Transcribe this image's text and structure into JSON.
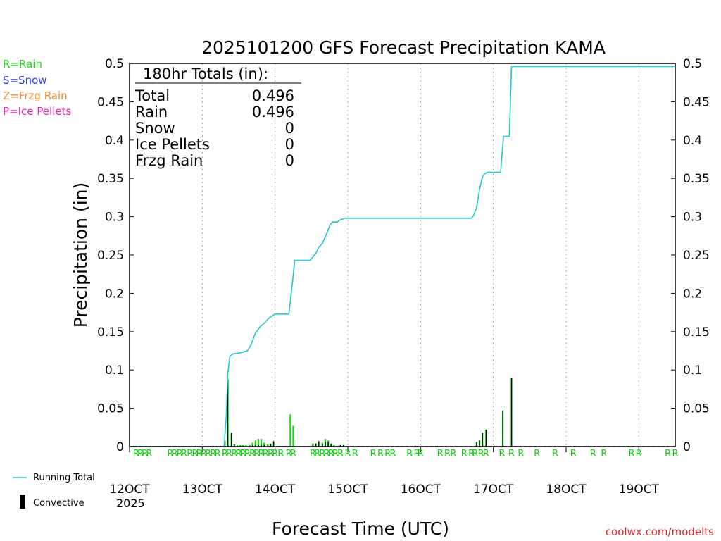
{
  "chart_data": {
    "type": "bar",
    "title": "2025101200 GFS Forecast Precipitation KAMA",
    "xlabel": "Forecast Time (UTC)",
    "ylabel": "Precipitation (in)",
    "ylim": [
      0,
      0.5
    ],
    "xlim_days": [
      12,
      19.5
    ],
    "y_ticks": [
      0,
      0.05,
      0.1,
      0.15,
      0.2,
      0.25,
      0.3,
      0.35,
      0.4,
      0.45,
      0.5
    ],
    "y_tick_labels": [
      "0",
      "0.05",
      "0.1",
      "0.15",
      "0.2",
      "0.25",
      "0.3",
      "0.35",
      "0.4",
      "0.45",
      "0.5"
    ],
    "x_ticks": [
      {
        "day": 12,
        "label": "12OCT"
      },
      {
        "day": 13,
        "label": "13OCT"
      },
      {
        "day": 14,
        "label": "14OCT"
      },
      {
        "day": 15,
        "label": "15OCT"
      },
      {
        "day": 16,
        "label": "16OCT"
      },
      {
        "day": 17,
        "label": "17OCT"
      },
      {
        "day": 18,
        "label": "18OCT"
      },
      {
        "day": 19,
        "label": "19OCT"
      }
    ],
    "year_label": "2025",
    "grid": "vertical-dotted",
    "legend": {
      "types": [
        {
          "label": "R=Rain",
          "color": "#22dd22"
        },
        {
          "label": "S=Snow",
          "color": "#3344ee"
        },
        {
          "label": "Z=Frzg Rain",
          "color": "#f08a2a"
        },
        {
          "label": "P=Ice Pellets",
          "color": "#ee22aa"
        }
      ],
      "running_total": "Running Total",
      "convective": "Convective"
    },
    "totals_box": {
      "heading": "180hr Totals (in):",
      "rows": [
        {
          "label": "Total",
          "value": "0.496"
        },
        {
          "label": "Rain",
          "value": "0.496"
        },
        {
          "label": "Snow",
          "value": "0"
        },
        {
          "label": "Ice Pellets",
          "value": "0"
        },
        {
          "label": "Frzg Rain",
          "value": "0"
        }
      ]
    },
    "precip_series": {
      "name": "Precipitation",
      "bar_width_days": 0.022,
      "points": [
        {
          "day": 13.31,
          "rain": 0.008,
          "conv": 0.008
        },
        {
          "day": 13.35,
          "rain": 0.088,
          "conv": 0.088
        },
        {
          "day": 13.4,
          "rain": 0.018,
          "conv": 0.018
        },
        {
          "day": 13.44,
          "rain": 0.003,
          "conv": 0.003
        },
        {
          "day": 13.48,
          "rain": 0.002,
          "conv": 0.001
        },
        {
          "day": 13.52,
          "rain": 0.002,
          "conv": 0.001
        },
        {
          "day": 13.56,
          "rain": 0.002,
          "conv": 0.001
        },
        {
          "day": 13.6,
          "rain": 0.002,
          "conv": 0.001
        },
        {
          "day": 13.65,
          "rain": 0.002,
          "conv": 0.001
        },
        {
          "day": 13.69,
          "rain": 0.005,
          "conv": 0.002
        },
        {
          "day": 13.73,
          "rain": 0.008,
          "conv": 0.002
        },
        {
          "day": 13.77,
          "rain": 0.01,
          "conv": 0.002
        },
        {
          "day": 13.81,
          "rain": 0.01,
          "conv": 0.002
        },
        {
          "day": 13.85,
          "rain": 0.005,
          "conv": 0.002
        },
        {
          "day": 13.9,
          "rain": 0.003,
          "conv": 0.002
        },
        {
          "day": 13.94,
          "rain": 0.004,
          "conv": 0.003
        },
        {
          "day": 13.98,
          "rain": 0.007,
          "conv": 0.007
        },
        {
          "day": 14.02,
          "rain": 0.001,
          "conv": 0.0
        },
        {
          "day": 14.06,
          "rain": 0.001,
          "conv": 0.0
        },
        {
          "day": 14.1,
          "rain": 0.001,
          "conv": 0.0
        },
        {
          "day": 14.15,
          "rain": 0.001,
          "conv": 0.0
        },
        {
          "day": 14.21,
          "rain": 0.042,
          "conv": 0.0
        },
        {
          "day": 14.25,
          "rain": 0.027,
          "conv": 0.0
        },
        {
          "day": 14.52,
          "rain": 0.004,
          "conv": 0.004
        },
        {
          "day": 14.56,
          "rain": 0.004,
          "conv": 0.004
        },
        {
          "day": 14.6,
          "rain": 0.007,
          "conv": 0.007
        },
        {
          "day": 14.65,
          "rain": 0.005,
          "conv": 0.003
        },
        {
          "day": 14.69,
          "rain": 0.01,
          "conv": 0.006
        },
        {
          "day": 14.73,
          "rain": 0.008,
          "conv": 0.006
        },
        {
          "day": 14.77,
          "rain": 0.004,
          "conv": 0.003
        },
        {
          "day": 14.81,
          "rain": 0.002,
          "conv": 0.001
        },
        {
          "day": 14.85,
          "rain": 0.001,
          "conv": 0.001
        },
        {
          "day": 14.9,
          "rain": 0.002,
          "conv": 0.002
        },
        {
          "day": 14.94,
          "rain": 0.002,
          "conv": 0.002
        },
        {
          "day": 16.77,
          "rain": 0.006,
          "conv": 0.006
        },
        {
          "day": 16.81,
          "rain": 0.008,
          "conv": 0.008
        },
        {
          "day": 16.85,
          "rain": 0.018,
          "conv": 0.018
        },
        {
          "day": 16.9,
          "rain": 0.022,
          "conv": 0.022
        },
        {
          "day": 17.13,
          "rain": 0.047,
          "conv": 0.047
        },
        {
          "day": 17.25,
          "rain": 0.09,
          "conv": 0.09
        }
      ]
    },
    "running_total_series": {
      "name": "Running Total",
      "x": [
        12.0,
        13.3,
        13.33,
        13.35,
        13.38,
        13.42,
        13.5,
        13.62,
        13.67,
        13.73,
        13.79,
        13.85,
        13.92,
        14.0,
        14.19,
        14.24,
        14.27,
        14.48,
        14.56,
        14.6,
        14.65,
        14.71,
        14.76,
        14.79,
        14.85,
        14.9,
        14.96,
        15.0,
        16.7,
        16.73,
        16.77,
        16.81,
        16.85,
        16.88,
        16.92,
        17.0,
        17.1,
        17.14,
        17.22,
        17.25,
        18.0,
        19.5
      ],
      "y": [
        0,
        0,
        0.04,
        0.095,
        0.118,
        0.121,
        0.122,
        0.125,
        0.133,
        0.148,
        0.156,
        0.161,
        0.168,
        0.173,
        0.173,
        0.215,
        0.243,
        0.243,
        0.252,
        0.26,
        0.265,
        0.278,
        0.29,
        0.293,
        0.293,
        0.296,
        0.298,
        0.298,
        0.298,
        0.302,
        0.312,
        0.335,
        0.352,
        0.356,
        0.358,
        0.358,
        0.358,
        0.405,
        0.405,
        0.496,
        0.496,
        0.496
      ]
    },
    "type_markers": {
      "letter": "R",
      "x_days": [
        12.09,
        12.15,
        12.21,
        12.27,
        12.56,
        12.62,
        12.69,
        12.75,
        12.83,
        12.9,
        12.96,
        13.02,
        13.08,
        13.15,
        13.21,
        13.31,
        13.37,
        13.44,
        13.5,
        13.56,
        13.62,
        13.69,
        13.75,
        13.81,
        13.87,
        13.94,
        14.0,
        14.08,
        14.19,
        14.25,
        14.52,
        14.58,
        14.65,
        14.71,
        14.77,
        14.83,
        14.9,
        15.0,
        15.1,
        15.35,
        15.45,
        15.55,
        15.62,
        15.85,
        15.95,
        16.0,
        16.27,
        16.37,
        16.45,
        16.6,
        16.7,
        16.75,
        16.83,
        16.9,
        17.12,
        17.25,
        17.38,
        17.6,
        17.85,
        18.1,
        18.37,
        18.52,
        18.9,
        19.0,
        19.4,
        19.5
      ]
    },
    "credit": "coolwx.com/modelts"
  }
}
